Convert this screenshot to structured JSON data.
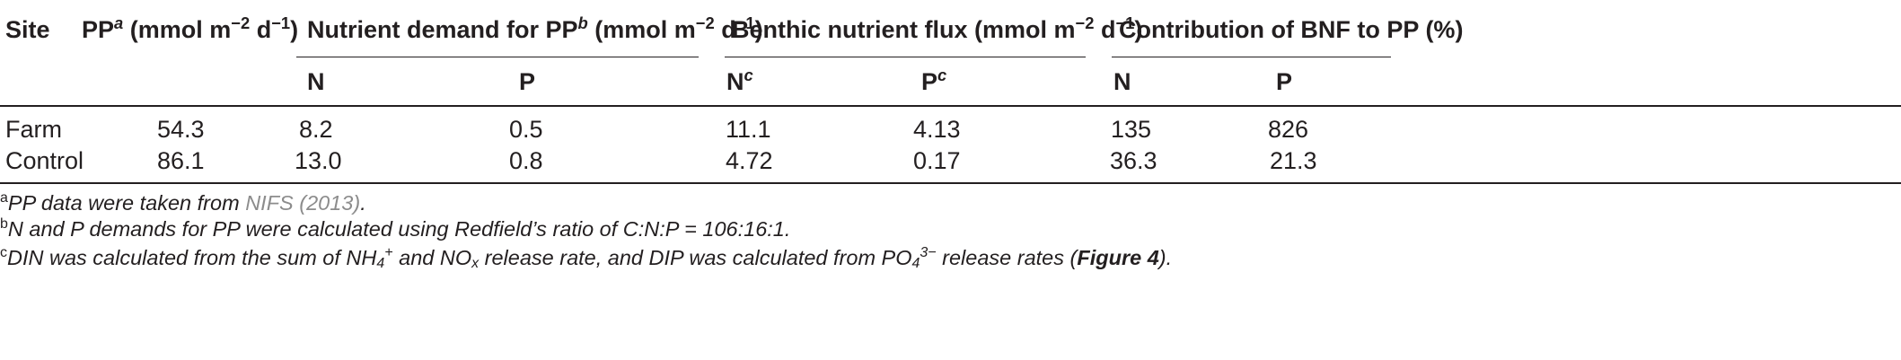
{
  "table": {
    "header": {
      "site": "Site",
      "pp": {
        "label": "PP",
        "sup": "a",
        "unit_pre": " (mmol m",
        "unit_exp1": "−2",
        "unit_mid": " d",
        "unit_exp2": "−1",
        "unit_post": ")"
      },
      "demand": {
        "label": "Nutrient demand for PP",
        "sup": "b",
        "unit_pre": " (mmol m",
        "unit_exp1": "−2",
        "unit_mid": " d",
        "unit_exp2": "−1",
        "unit_post": ")"
      },
      "flux": {
        "label": "Benthic nutrient flux (mmol m",
        "unit_exp1": "−2",
        "unit_mid": " d",
        "unit_exp2": "−1",
        "unit_post": ")"
      },
      "contribution": "Contribution of BNF to PP (%)",
      "sub": {
        "demand_n": "N",
        "demand_p": "P",
        "flux_n": "N",
        "flux_n_sup": "c",
        "flux_p": "P",
        "flux_p_sup": "c",
        "contrib_n": "N",
        "contrib_p": "P"
      }
    },
    "rows": [
      {
        "site": "Farm",
        "pp": "54.3",
        "demand_n": "8.2",
        "demand_p": "0.5",
        "flux_n": "11.1",
        "flux_p": "4.13",
        "contrib_n": "135",
        "contrib_p": "826"
      },
      {
        "site": "Control",
        "pp": "86.1",
        "demand_n": "13.0",
        "demand_p": "0.8",
        "flux_n": "4.72",
        "flux_p": "0.17",
        "contrib_n": "36.3",
        "contrib_p": "21.3"
      }
    ]
  },
  "footnotes": {
    "a": {
      "mark": "a",
      "text": "PP data were taken from ",
      "link": "NIFS (2013)",
      "end": "."
    },
    "b": {
      "mark": "b",
      "text": "N and P demands for PP were calculated using Redfield’s ratio of C:N:P = 106:16:1."
    },
    "c": {
      "mark": "c",
      "t1": "DIN was calculated from the sum of NH",
      "nh_sub": "4",
      "nh_sup": "+",
      "t2": " and NO",
      "no_sub": "x",
      "t3": " release rate, and DIP was calculated from PO",
      "po_sub": "4",
      "po_sup": "3−",
      "t4": " release rates (",
      "fig": "Figure 4",
      "t5": ")."
    }
  }
}
